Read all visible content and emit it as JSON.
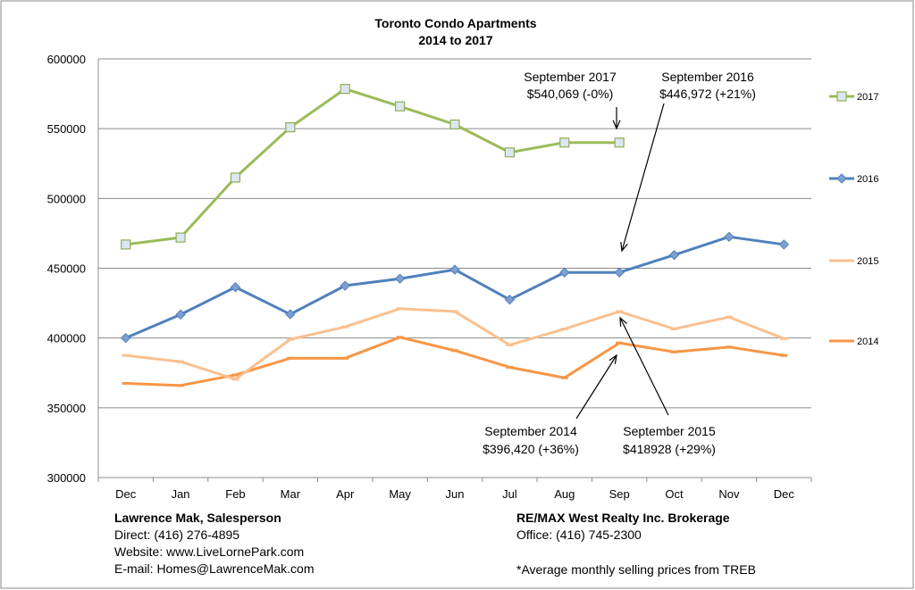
{
  "chart_data": {
    "type": "line",
    "title": "Toronto Condo Apartments",
    "subtitle": "2014 to 2017",
    "xlabel": "",
    "ylabel": "",
    "categories": [
      "Dec",
      "Jan",
      "Feb",
      "Mar",
      "Apr",
      "May",
      "Jun",
      "Jul",
      "Aug",
      "Sep",
      "Oct",
      "Nov",
      "Dec"
    ],
    "ylim": [
      300000,
      600000
    ],
    "yticks": [
      300000,
      350000,
      400000,
      450000,
      500000,
      550000,
      600000
    ],
    "grid": true,
    "legend_position": "right",
    "series": [
      {
        "name": "2017",
        "color": "#9bbb59",
        "marker": "square",
        "values": [
          467000,
          472000,
          515000,
          551000,
          578500,
          566000,
          553000,
          533000,
          540069,
          540069,
          null,
          null,
          null
        ]
      },
      {
        "name": "2016",
        "color": "#4f81bd",
        "marker": "diamond",
        "values": [
          400000,
          416800,
          436400,
          417000,
          437500,
          442500,
          449000,
          427500,
          446972,
          446972,
          459500,
          472500,
          467000
        ]
      },
      {
        "name": "2015",
        "color": "#fac090",
        "marker": "dash",
        "values": [
          387500,
          383000,
          370500,
          399000,
          408000,
          421000,
          419000,
          395000,
          406500,
          418928,
          406500,
          415000,
          399500
        ]
      },
      {
        "name": "2014",
        "color": "#f79646",
        "marker": "dash",
        "values": [
          367500,
          366000,
          373500,
          385500,
          385500,
          400500,
          391000,
          379000,
          371500,
          396420,
          390000,
          393500,
          387500
        ]
      }
    ],
    "annotations": [
      {
        "line1": "September 2017",
        "line2": "$540,069 (-0%)"
      },
      {
        "line1": "September 2016",
        "line2": "$446,972 (+21%)"
      },
      {
        "line1": "September 2014",
        "line2": "$396,420 (+36%)"
      },
      {
        "line1": "September 2015",
        "line2": "$418928 (+29%)"
      }
    ]
  },
  "footer": {
    "agent_name": "Lawrence Mak, Salesperson",
    "direct": "Direct:  (416) 276-4895",
    "website": "Website:  www.LiveLornePark.com",
    "email": "E-mail:  Homes@LawrenceMak.com",
    "brokerage": "RE/MAX West Realty Inc. Brokerage",
    "office": "Office: (416) 745-2300",
    "note": "*Average monthly selling prices from TREB"
  }
}
